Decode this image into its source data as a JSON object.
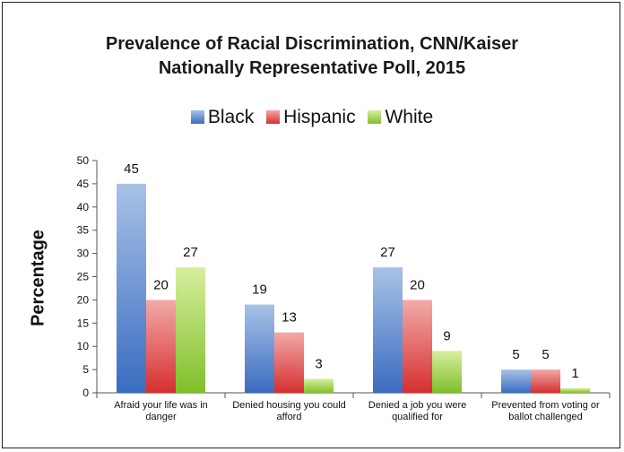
{
  "chart_data": {
    "type": "bar",
    "title_lines": [
      "Prevalence of Racial Discrimination, CNN/Kaiser",
      "Nationally Representative Poll,  2015"
    ],
    "ylabel": "Percentage",
    "xlabel": "",
    "ylim": [
      0,
      50
    ],
    "yticks": [
      0,
      5,
      10,
      15,
      20,
      25,
      30,
      35,
      40,
      45,
      50
    ],
    "grid": false,
    "legend_position": "top-center",
    "categories": [
      [
        "Afraid your life was in",
        "danger"
      ],
      [
        "Denied housing you could",
        "afford"
      ],
      [
        "Denied a job you were",
        "qualified for"
      ],
      [
        "Prevented from voting or",
        "ballot challenged"
      ]
    ],
    "series": [
      {
        "name": "Black",
        "values": [
          45,
          19,
          27,
          5
        ],
        "color_top": "#a8c2e6",
        "color_bottom": "#3a6cc0"
      },
      {
        "name": "Hispanic",
        "values": [
          20,
          13,
          20,
          5
        ],
        "color_top": "#f2aaa8",
        "color_bottom": "#d52f2f"
      },
      {
        "name": "White",
        "values": [
          27,
          3,
          9,
          1
        ],
        "color_top": "#d7ee9e",
        "color_bottom": "#7fbf2a"
      }
    ]
  }
}
